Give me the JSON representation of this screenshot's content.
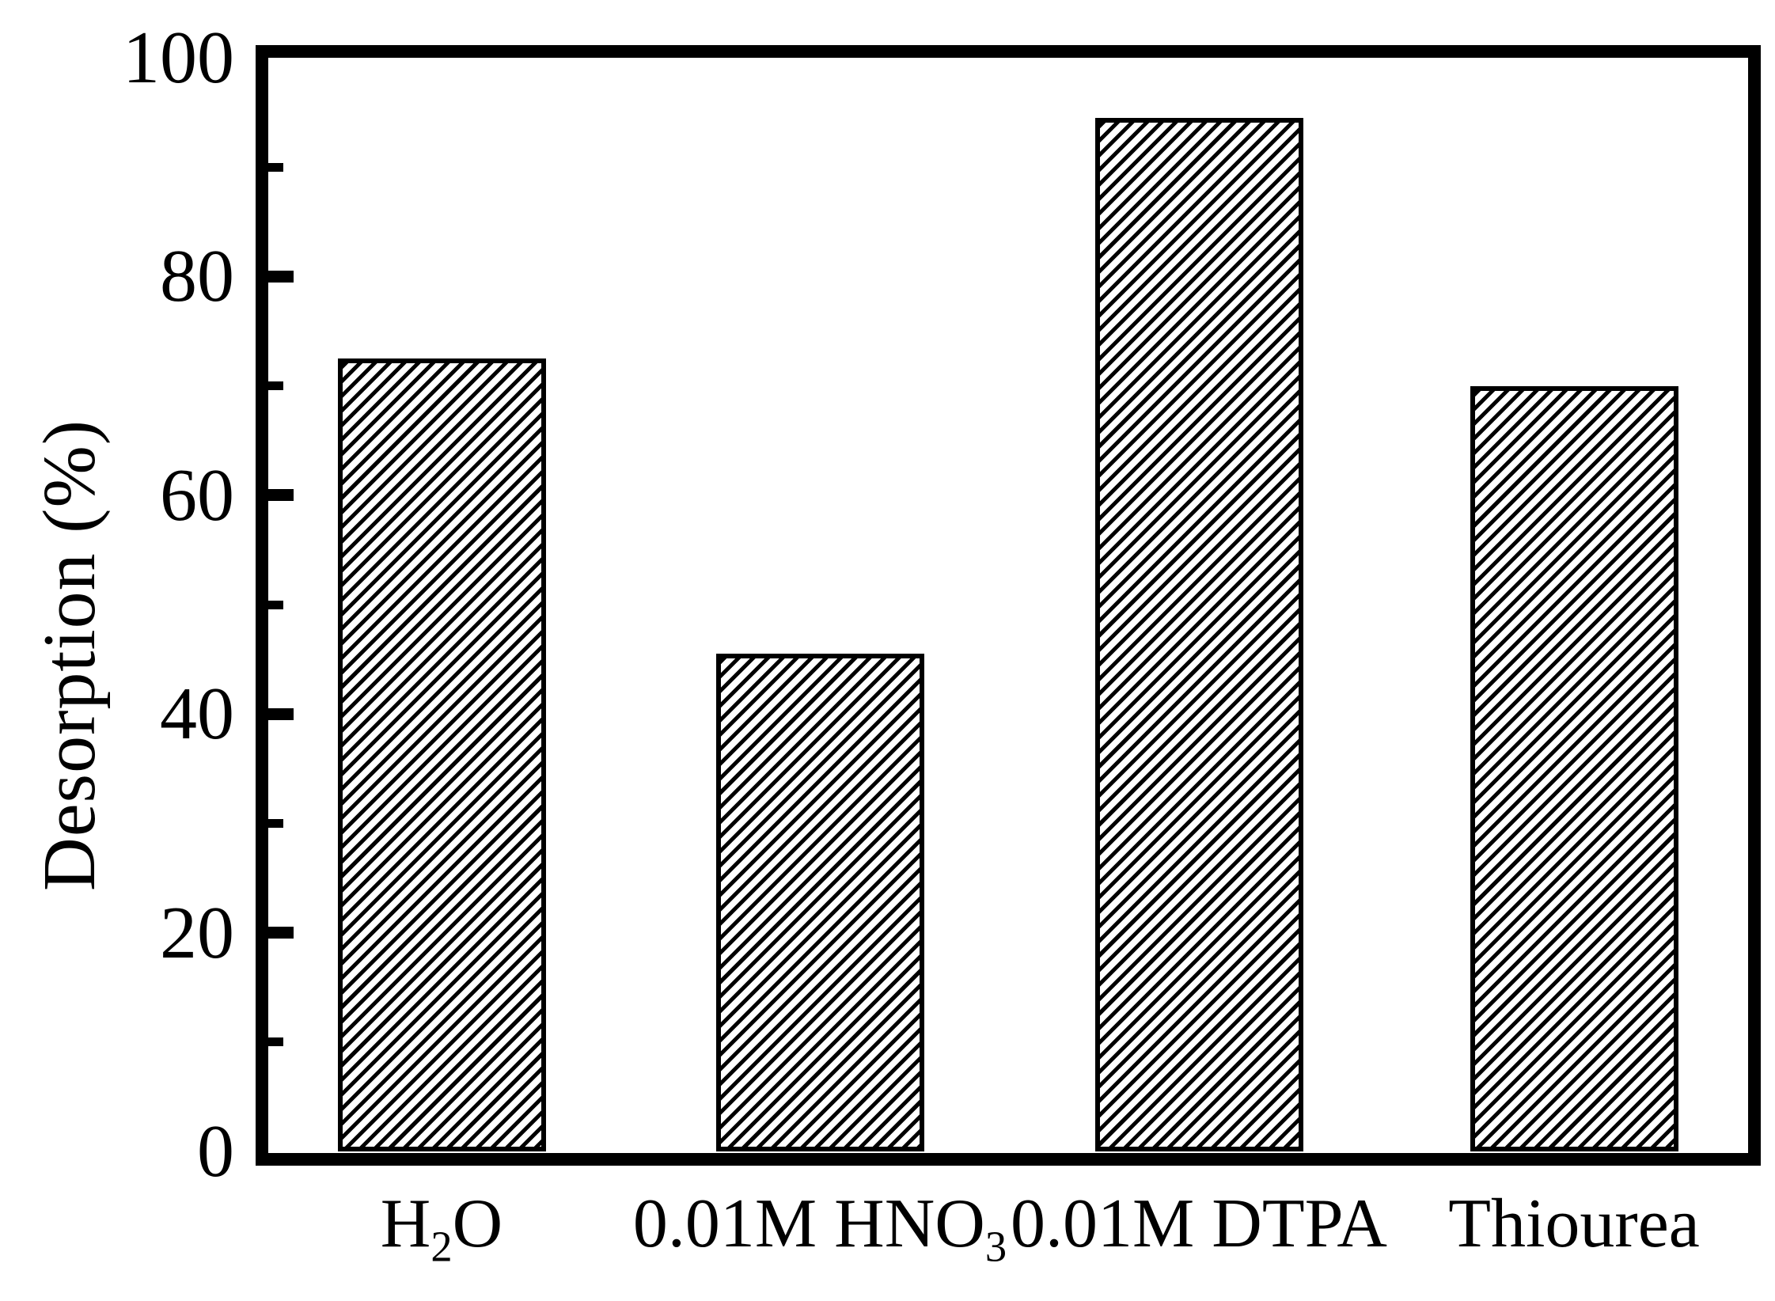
{
  "background": "#ffffff",
  "foreground": "#000000",
  "chart_data": {
    "type": "bar",
    "title": "",
    "xlabel": "",
    "ylabel": "Desorption (%)",
    "ylim": [
      0,
      100
    ],
    "y_major_ticks": [
      0,
      20,
      40,
      60,
      80,
      100
    ],
    "y_minor_ticks": [
      10,
      30,
      50,
      70,
      90
    ],
    "categories": [
      "H₂O",
      "0.01M HNO₃",
      "0.01M DTPA",
      "Thiourea"
    ],
    "category_parts": [
      [
        {
          "t": "H"
        },
        {
          "t": "2",
          "sub": true
        },
        {
          "t": "O"
        }
      ],
      [
        {
          "t": "0.01M HNO"
        },
        {
          "t": "3",
          "sub": true
        }
      ],
      [
        {
          "t": "0.01M DTPA"
        }
      ],
      [
        {
          "t": "Thiourea"
        }
      ]
    ],
    "values": [
      72.5,
      45.5,
      94.5,
      70
    ],
    "series_name": "Desorption (%)",
    "grid": false,
    "legend": false,
    "bar_style": {
      "fill": "#ffffff",
      "hatch": "diagonal-forward-slash",
      "edge_color": "#000000",
      "hatch_color": "#000000"
    },
    "axis_style": {
      "frame": "full-box",
      "tick_direction": "in",
      "axis_color": "#000000"
    }
  }
}
